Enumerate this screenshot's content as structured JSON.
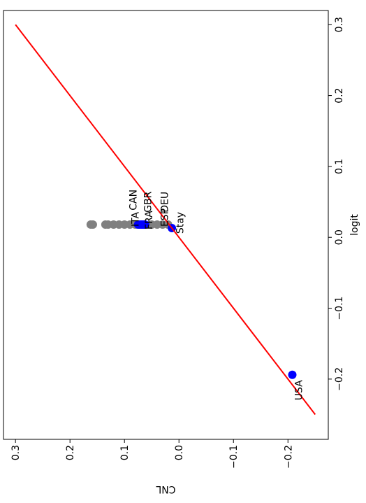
{
  "chart_data": {
    "type": "scatter",
    "x_label": "logit",
    "y_label": "CNL",
    "xlim": [
      -0.285,
      0.32
    ],
    "ylim": [
      -0.274,
      0.322
    ],
    "xticks": [
      {
        "value": -0.2,
        "label": "−0.2"
      },
      {
        "value": -0.1,
        "label": "−0.1"
      },
      {
        "value": 0,
        "label": "0.0"
      },
      0.1,
      0.2,
      0.3
    ],
    "yticks": [
      {
        "value": -0.2,
        "label": "−0.2"
      },
      {
        "value": -0.1,
        "label": "−0.1"
      },
      {
        "value": 0,
        "label": "0.0"
      },
      0.1,
      0.2,
      0.3
    ],
    "series": [
      {
        "kind": "points",
        "color": "#808080",
        "x": [
          0.018,
          0.018,
          0.018,
          0.018,
          0.018,
          0.018,
          0.018,
          0.018,
          0.018,
          0.018,
          0.018,
          0.018,
          0.018
        ],
        "values": [
          0.162,
          0.158,
          0.135,
          0.13,
          0.12,
          0.11,
          0.1,
          0.09,
          0.08,
          0.05,
          0.04,
          0.03,
          0.02
        ]
      },
      {
        "kind": "points",
        "color": "#0000ff",
        "x": [
          0.018,
          0.018,
          0.018,
          0.018,
          0.018,
          0.018,
          0.013,
          -0.194
        ],
        "values": [
          0.075,
          0.072,
          0.069,
          0.066,
          0.064,
          0.062,
          0.013,
          -0.208
        ]
      },
      {
        "kind": "line",
        "color": "#ff0000",
        "x": [
          -0.25,
          0.3
        ],
        "values": [
          -0.25,
          0.3
        ]
      }
    ],
    "annotations": [
      {
        "text": "ITA",
        "x": 0.015,
        "y": 0.074
      },
      {
        "text": "CAN",
        "x": 0.038,
        "y": 0.078
      },
      {
        "text": "FRA",
        "x": 0.011,
        "y": 0.049
      },
      {
        "text": "GBR",
        "x": 0.035,
        "y": 0.051
      },
      {
        "text": "ESP",
        "x": 0.015,
        "y": 0.02
      },
      {
        "text": "DEU",
        "x": 0.035,
        "y": 0.02
      },
      {
        "text": "Stay",
        "x": 0.005,
        "y": -0.008
      },
      {
        "text": "USA",
        "x": -0.23,
        "y": -0.226
      }
    ]
  }
}
